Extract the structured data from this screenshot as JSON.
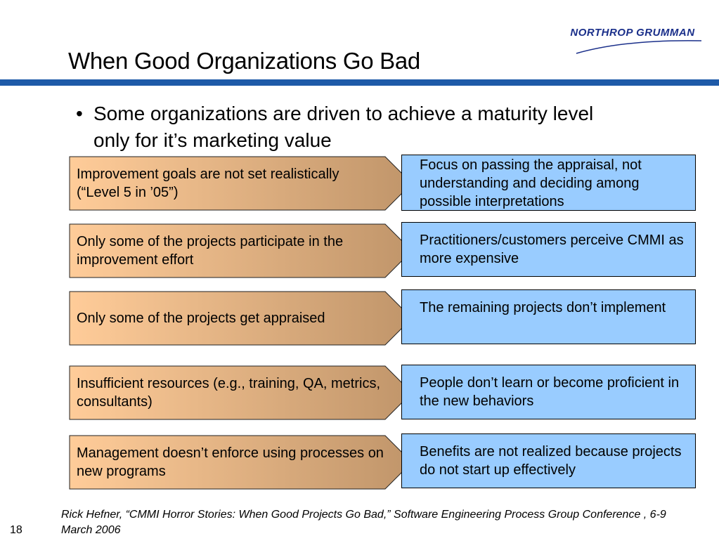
{
  "logo": {
    "text": "NORTHROP GRUMMAN",
    "color": "#1a2f8a"
  },
  "title": "When Good Organizations Go Bad",
  "bullet": {
    "marker": "•",
    "text": "Some organizations are driven to achieve a maturity level only for it’s marketing value"
  },
  "rows": [
    {
      "cause": "Improvement goals are not set realistically (“Level 5 in ’05”)",
      "effect": "Focus on passing the appraisal, not understanding and deciding among possible interpretations"
    },
    {
      "cause": "Only some of the projects participate in the improvement effort",
      "effect": "Practitioners/customers perceive CMMI as more expensive"
    },
    {
      "cause": "Only some of the projects get appraised",
      "effect": "The remaining projects don’t implement"
    },
    {
      "cause": "Insufficient resources (e.g., training, QA, metrics, consultants)",
      "effect": "People don’t learn or become proficient in the new behaviors"
    },
    {
      "cause": "Management doesn’t enforce using processes on new programs",
      "effect": "Benefits are not realized because projects do not start up effectively"
    }
  ],
  "citation": "Rick Hefner, “CMMI Horror Stories: When Good Projects Go Bad,” Software Engineering Process Group Conference , 6-9 March 2006",
  "page_number": "18",
  "colors": {
    "accent_rule": "#1e5aa8",
    "effect_box": "#99ccff",
    "arrow_gradient_start": "#ffcc99",
    "arrow_gradient_end": "#c0956a"
  }
}
